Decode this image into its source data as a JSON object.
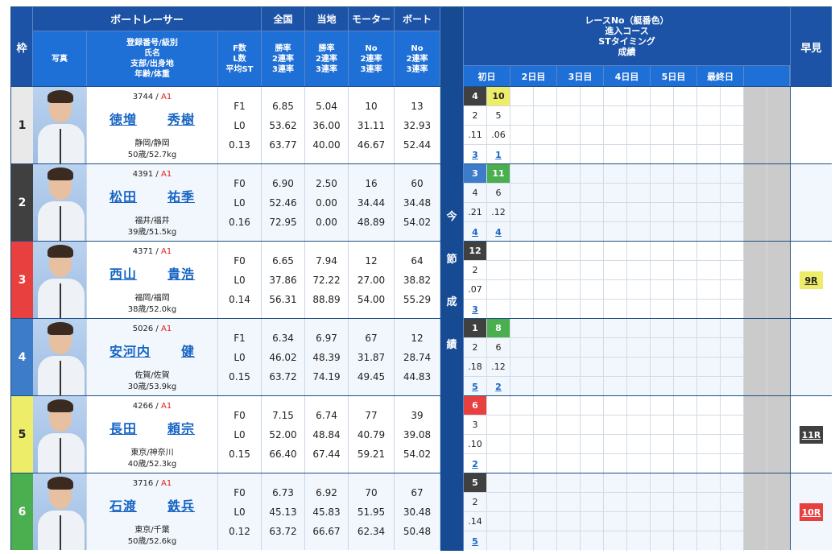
{
  "header": {
    "waku": "枠",
    "racer": "ボートレーサー",
    "zenkoku": "全国",
    "tochi": "当地",
    "motor": "モーター",
    "boat": "ボート",
    "photo": "写真",
    "info": [
      "登録番号/級別",
      "氏名",
      "支部/出身地",
      "年齢/体重"
    ],
    "fl": [
      "F数",
      "L数",
      "平均ST"
    ],
    "zenkoku_sub": [
      "勝率",
      "2連率",
      "3連率"
    ],
    "tochi_sub": [
      "勝率",
      "2連率",
      "3連率"
    ],
    "motor_sub": [
      "No",
      "2連率",
      "3連率"
    ],
    "boat_sub": [
      "No",
      "2連率",
      "3連率"
    ],
    "konsetsu": [
      "今",
      "節",
      "成",
      "績"
    ],
    "race_info": [
      "レースNo（艇番色）",
      "進入コース",
      "STタイミング",
      "成績"
    ],
    "days": [
      "初日",
      "2日目",
      "3日目",
      "4日目",
      "5日目",
      "最終日",
      ""
    ],
    "hayami": "早見"
  },
  "colors": {
    "waku": [
      "#e9e9e9",
      "#404040",
      "#e8403f",
      "#3d7cc9",
      "#eded6a",
      "#4bae4f"
    ],
    "waku_text": [
      "#222222",
      "#ffffff",
      "#ffffff",
      "#ffffff",
      "#222222",
      "#ffffff"
    ]
  },
  "racers": [
    {
      "waku": "1",
      "reg": "3744",
      "cls": "A1",
      "sei": "徳増",
      "mei": "秀樹",
      "pref": "静岡/静岡",
      "agewt": "50歳/52.7kg",
      "f": "F1",
      "l": "L0",
      "st": "0.13",
      "zenkoku": [
        "6.85",
        "53.62",
        "63.77"
      ],
      "tochi": [
        "5.04",
        "36.00",
        "40.00"
      ],
      "motor": [
        "10",
        "31.11",
        "46.67"
      ],
      "boat": [
        "13",
        "32.93",
        "52.44"
      ],
      "races": [
        {
          "no": "4",
          "color": "#404040",
          "text": "#ffffff",
          "course": "2",
          "st": ".11",
          "result": "3"
        },
        {
          "no": "10",
          "color": "#eded6a",
          "text": "#222222",
          "course": "5",
          "st": ".06",
          "result": "1"
        }
      ],
      "hayami": null
    },
    {
      "waku": "2",
      "reg": "4391",
      "cls": "A1",
      "sei": "松田",
      "mei": "祐季",
      "pref": "福井/福井",
      "agewt": "39歳/51.5kg",
      "f": "F0",
      "l": "L0",
      "st": "0.16",
      "zenkoku": [
        "6.90",
        "52.46",
        "72.95"
      ],
      "tochi": [
        "2.50",
        "0.00",
        "0.00"
      ],
      "motor": [
        "16",
        "34.44",
        "48.89"
      ],
      "boat": [
        "60",
        "34.48",
        "54.02"
      ],
      "races": [
        {
          "no": "3",
          "color": "#3d7cc9",
          "text": "#ffffff",
          "course": "4",
          "st": ".21",
          "result": "4"
        },
        {
          "no": "11",
          "color": "#4bae4f",
          "text": "#ffffff",
          "course": "6",
          "st": ".12",
          "result": "4"
        }
      ],
      "hayami": null
    },
    {
      "waku": "3",
      "reg": "4371",
      "cls": "A1",
      "sei": "西山",
      "mei": "貴浩",
      "pref": "福岡/福岡",
      "agewt": "38歳/52.0kg",
      "f": "F0",
      "l": "L0",
      "st": "0.14",
      "zenkoku": [
        "6.65",
        "37.86",
        "56.31"
      ],
      "tochi": [
        "7.94",
        "72.22",
        "88.89"
      ],
      "motor": [
        "12",
        "27.00",
        "54.00"
      ],
      "boat": [
        "64",
        "38.82",
        "55.29"
      ],
      "races": [
        {
          "no": "12",
          "color": "#404040",
          "text": "#ffffff",
          "course": "2",
          "st": ".07",
          "result": "3"
        }
      ],
      "hayami": {
        "label": "9R",
        "color": "#eded6a",
        "text": "#222222"
      }
    },
    {
      "waku": "4",
      "reg": "5026",
      "cls": "A1",
      "sei": "安河内",
      "mei": "健",
      "pref": "佐賀/佐賀",
      "agewt": "30歳/53.9kg",
      "f": "F1",
      "l": "L0",
      "st": "0.15",
      "zenkoku": [
        "6.34",
        "46.02",
        "63.72"
      ],
      "tochi": [
        "6.97",
        "48.39",
        "74.19"
      ],
      "motor": [
        "67",
        "31.87",
        "49.45"
      ],
      "boat": [
        "12",
        "28.74",
        "44.83"
      ],
      "races": [
        {
          "no": "1",
          "color": "#404040",
          "text": "#ffffff",
          "course": "2",
          "st": ".18",
          "result": "5"
        },
        {
          "no": "8",
          "color": "#4bae4f",
          "text": "#ffffff",
          "course": "6",
          "st": ".12",
          "result": "2"
        }
      ],
      "hayami": null
    },
    {
      "waku": "5",
      "reg": "4266",
      "cls": "A1",
      "sei": "長田",
      "mei": "頼宗",
      "pref": "東京/神奈川",
      "agewt": "40歳/52.3kg",
      "f": "F0",
      "l": "L0",
      "st": "0.15",
      "zenkoku": [
        "7.15",
        "52.00",
        "66.40"
      ],
      "tochi": [
        "6.74",
        "48.84",
        "67.44"
      ],
      "motor": [
        "77",
        "40.79",
        "59.21"
      ],
      "boat": [
        "39",
        "39.08",
        "54.02"
      ],
      "races": [
        {
          "no": "6",
          "color": "#e8403f",
          "text": "#ffffff",
          "course": "3",
          "st": ".10",
          "result": "2"
        }
      ],
      "hayami": {
        "label": "11R",
        "color": "#404040",
        "text": "#ffffff"
      }
    },
    {
      "waku": "6",
      "reg": "3716",
      "cls": "A1",
      "sei": "石渡",
      "mei": "鉄兵",
      "pref": "東京/千葉",
      "agewt": "50歳/52.6kg",
      "f": "F0",
      "l": "L0",
      "st": "0.12",
      "zenkoku": [
        "6.73",
        "45.13",
        "63.72"
      ],
      "tochi": [
        "6.92",
        "45.83",
        "66.67"
      ],
      "motor": [
        "70",
        "51.95",
        "62.34"
      ],
      "boat": [
        "67",
        "30.48",
        "50.48"
      ],
      "races": [
        {
          "no": "5",
          "color": "#404040",
          "text": "#ffffff",
          "course": "2",
          "st": ".14",
          "result": "5"
        }
      ],
      "hayami": {
        "label": "10R",
        "color": "#e8403f",
        "text": "#ffffff"
      }
    }
  ]
}
